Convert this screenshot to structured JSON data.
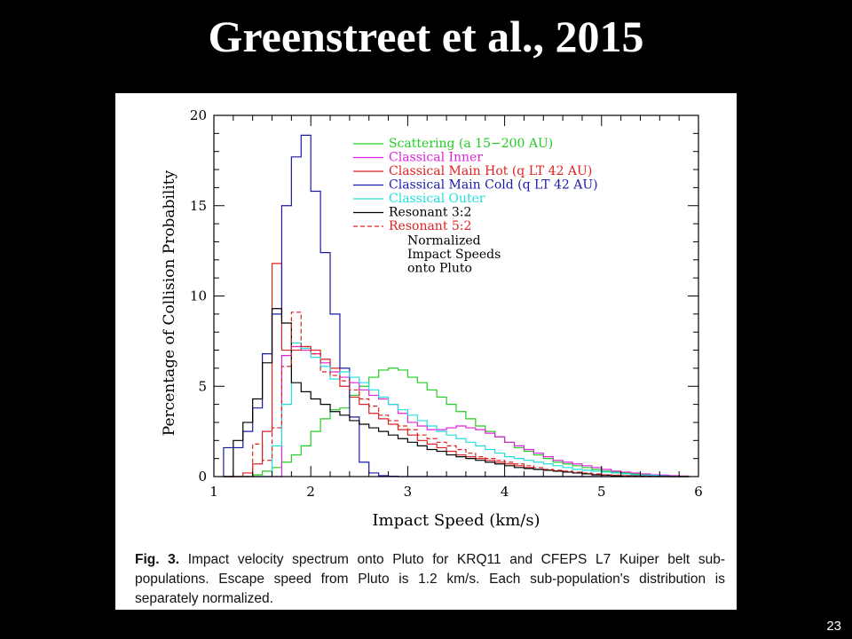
{
  "slide": {
    "title": "Greenstreet et al., 2015",
    "page_number": "23"
  },
  "caption": {
    "label": "Fig. 3.",
    "text": "Impact velocity spectrum onto Pluto for KRQ11 and CFEPS L7 Kuiper belt sub-populations. Escape speed from Pluto is 1.2 km/s. Each sub-population's distribution is separately normalized."
  },
  "chart_data": {
    "type": "line",
    "title": "",
    "xlabel": "Impact Speed (km/s)",
    "ylabel": "Percentage of Collision Probability",
    "xlim": [
      1,
      6
    ],
    "ylim": [
      0,
      20
    ],
    "xticks": [
      1,
      2,
      3,
      4,
      5,
      6
    ],
    "yticks": [
      0,
      5,
      10,
      15,
      20
    ],
    "grid": false,
    "legend_position": "top-right",
    "annotation": [
      "Normalized",
      "Impact Speeds",
      "onto Pluto"
    ],
    "bin_edges": [
      1.1,
      1.2,
      1.3,
      1.4,
      1.5,
      1.6,
      1.7,
      1.8,
      1.9,
      2.0,
      2.1,
      2.2,
      2.3,
      2.4,
      2.5,
      2.6,
      2.7,
      2.8,
      2.9,
      3.0,
      3.1,
      3.2,
      3.3,
      3.4,
      3.5,
      3.6,
      3.7,
      3.8,
      3.9,
      4.0,
      4.1,
      4.2,
      4.3,
      4.4,
      4.5,
      4.6,
      4.7,
      4.8,
      4.9,
      5.0,
      5.1,
      5.2,
      5.3,
      5.4,
      5.5,
      5.6,
      5.7,
      5.8,
      5.9
    ],
    "series": [
      {
        "name": "Scattering (a 15−200 AU)",
        "color": "#22cc22",
        "dash": false,
        "values": [
          0,
          0,
          0,
          0.1,
          0.3,
          0.5,
          0.8,
          1.2,
          1.7,
          2.5,
          3.2,
          3.7,
          3.8,
          4.5,
          5.0,
          5.5,
          5.9,
          6.0,
          5.9,
          5.5,
          5.2,
          4.8,
          4.4,
          4.0,
          3.6,
          3.2,
          2.8,
          2.5,
          2.2,
          1.9,
          1.6,
          1.4,
          1.2,
          1.0,
          0.8,
          0.7,
          0.6,
          0.5,
          0.4,
          0.3,
          0.25,
          0.2,
          0.15,
          0.1,
          0.08,
          0.05,
          0.03,
          0.02
        ]
      },
      {
        "name": "Classical Inner",
        "color": "#dd22dd",
        "dash": false,
        "values": [
          0,
          0,
          0,
          0,
          0,
          0,
          6.7,
          7.2,
          7.0,
          6.8,
          6.3,
          5.8,
          5.5,
          5.2,
          4.8,
          4.5,
          4.3,
          4.0,
          3.5,
          3.0,
          2.8,
          2.6,
          2.6,
          2.7,
          2.8,
          2.7,
          2.6,
          2.4,
          2.2,
          1.9,
          1.7,
          1.5,
          1.3,
          1.1,
          0.9,
          0.8,
          0.7,
          0.6,
          0.5,
          0.4,
          0.3,
          0.25,
          0.2,
          0.15,
          0.1,
          0.08,
          0.05,
          0.03
        ]
      },
      {
        "name": "Classical Main Hot (q LT 42 AU)",
        "color": "#dd2222",
        "dash": false,
        "values": [
          0,
          0,
          0.2,
          0.7,
          2.5,
          11.8,
          7.0,
          7.0,
          7.2,
          7.0,
          6.5,
          6.0,
          5.0,
          4.4,
          4.0,
          3.5,
          3.2,
          2.9,
          2.6,
          2.3,
          2.0,
          1.8,
          1.6,
          1.4,
          1.2,
          1.1,
          1.0,
          0.9,
          0.8,
          0.7,
          0.6,
          0.5,
          0.4,
          0.35,
          0.3,
          0.25,
          0.2,
          0.15,
          0.1,
          0.08,
          0.05,
          0.04,
          0.03,
          0.02,
          0.01,
          0.01,
          0.01,
          0
        ]
      },
      {
        "name": "Classical Main Cold (q LT 42 AU)",
        "color": "#1a1aaa",
        "dash": false,
        "values": [
          1.6,
          1.6,
          2.5,
          3.8,
          6.8,
          9.0,
          15.0,
          17.7,
          18.9,
          15.8,
          12.4,
          9.0,
          6.0,
          3.3,
          0.8,
          0.2,
          0.05,
          0.02,
          0,
          0,
          0,
          0,
          0,
          0,
          0,
          0,
          0,
          0,
          0,
          0,
          0,
          0,
          0,
          0,
          0,
          0,
          0,
          0,
          0,
          0,
          0,
          0,
          0,
          0,
          0,
          0,
          0,
          0
        ]
      },
      {
        "name": "Classical Outer",
        "color": "#22dddd",
        "dash": false,
        "values": [
          0,
          0,
          0,
          0,
          0,
          1.7,
          4.0,
          7.4,
          7.1,
          6.6,
          6.1,
          5.4,
          5.8,
          5.5,
          5.2,
          4.8,
          4.4,
          4.0,
          3.7,
          3.4,
          3.1,
          2.8,
          2.5,
          2.3,
          2.1,
          1.9,
          1.7,
          1.5,
          1.3,
          1.1,
          1.0,
          0.9,
          0.8,
          0.7,
          0.6,
          0.5,
          0.4,
          0.35,
          0.3,
          0.25,
          0.2,
          0.15,
          0.1,
          0.08,
          0.06,
          0.04,
          0.02,
          0.01
        ]
      },
      {
        "name": "Resonant 3:2",
        "color": "#000000",
        "dash": false,
        "values": [
          0,
          2.0,
          3.0,
          4.3,
          6.3,
          9.3,
          8.5,
          5.2,
          4.7,
          4.3,
          4.0,
          3.6,
          3.4,
          3.1,
          2.9,
          2.7,
          2.5,
          2.3,
          2.1,
          1.9,
          1.7,
          1.5,
          1.4,
          1.2,
          1.1,
          1.0,
          0.9,
          0.8,
          0.7,
          0.6,
          0.5,
          0.45,
          0.4,
          0.35,
          0.3,
          0.25,
          0.2,
          0.15,
          0.1,
          0.08,
          0.05,
          0.04,
          0.03,
          0.02,
          0.01,
          0.01,
          0,
          0
        ]
      },
      {
        "name": "Resonant 5:2",
        "color": "#dd2222",
        "dash": true,
        "values": [
          0,
          0,
          0,
          1.8,
          0.9,
          2.7,
          6.1,
          9.1,
          7.2,
          6.8,
          5.8,
          5.6,
          5.3,
          4.8,
          4.3,
          3.9,
          3.4,
          3.1,
          2.8,
          2.6,
          2.3,
          2.1,
          1.9,
          1.7,
          1.5,
          1.3,
          1.1,
          1.0,
          0.9,
          0.8,
          0.7,
          0.6,
          0.5,
          0.4,
          0.35,
          0.3,
          0.25,
          0.2,
          0.15,
          0.1,
          0.08,
          0.05,
          0.04,
          0.03,
          0.02,
          0.01,
          0,
          0
        ]
      }
    ]
  }
}
